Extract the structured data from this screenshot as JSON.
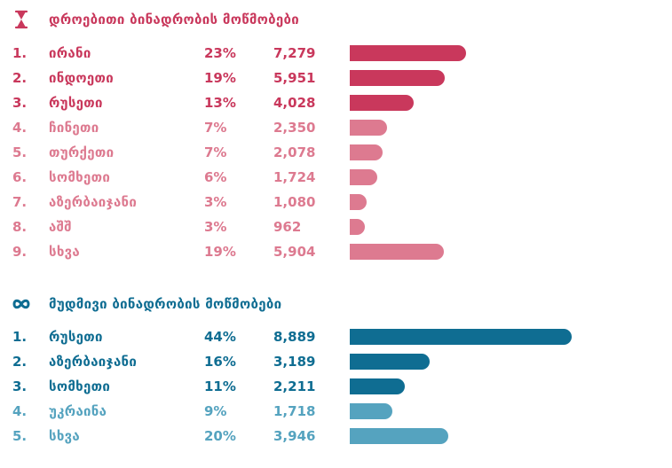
{
  "colors": {
    "temp_dark": "#c9385c",
    "temp_light": "#dd7a90",
    "perm_dark": "#0f6d92",
    "perm_light": "#55a3bf"
  },
  "temporary": {
    "icon": "hourglass-icon",
    "title": "დროებითი ბინადრობის მოწმობები"
  },
  "permanent": {
    "icon": "infinity-icon",
    "title": "მუდმივი ბინადრობის მოწმობები"
  },
  "chart_data": [
    {
      "type": "bar",
      "title": "დროებითი ბინადრობის მოწმობები",
      "orientation": "horizontal",
      "rows": [
        {
          "rank": "1.",
          "name": "ირანი",
          "percent": "23%",
          "count": "7,279",
          "value": 7279,
          "shade": "dark"
        },
        {
          "rank": "2.",
          "name": "ინდოეთი",
          "percent": "19%",
          "count": "5,951",
          "value": 5951,
          "shade": "dark"
        },
        {
          "rank": "3.",
          "name": "რუსეთი",
          "percent": "13%",
          "count": "4,028",
          "value": 4028,
          "shade": "dark"
        },
        {
          "rank": "4.",
          "name": "ჩინეთი",
          "percent": "7%",
          "count": "2,350",
          "value": 2350,
          "shade": "light"
        },
        {
          "rank": "5.",
          "name": "თურქეთი",
          "percent": "7%",
          "count": "2,078",
          "value": 2078,
          "shade": "light"
        },
        {
          "rank": "6.",
          "name": "სომხეთი",
          "percent": "6%",
          "count": "1,724",
          "value": 1724,
          "shade": "light"
        },
        {
          "rank": "7.",
          "name": "აზერბაიჯანი",
          "percent": "3%",
          "count": "1,080",
          "value": 1080,
          "shade": "light"
        },
        {
          "rank": "8.",
          "name": "აშშ",
          "percent": "3%",
          "count": "962",
          "value": 962,
          "shade": "light"
        },
        {
          "rank": "9.",
          "name": "სხვა",
          "percent": "19%",
          "count": "5,904",
          "value": 5904,
          "shade": "light"
        }
      ]
    },
    {
      "type": "bar",
      "title": "მუდმივი ბინადრობის მოწმობები",
      "orientation": "horizontal",
      "rows": [
        {
          "rank": "1.",
          "name": "რუსეთი",
          "percent": "44%",
          "count": "8,889",
          "value": 8889,
          "shade": "dark"
        },
        {
          "rank": "2.",
          "name": "აზერბაიჯანი",
          "percent": "16%",
          "count": "3,189",
          "value": 3189,
          "shade": "dark"
        },
        {
          "rank": "3.",
          "name": "სომხეთი",
          "percent": "11%",
          "count": "2,211",
          "value": 2211,
          "shade": "dark"
        },
        {
          "rank": "4.",
          "name": "უკრაინა",
          "percent": "9%",
          "count": "1,718",
          "value": 1718,
          "shade": "light"
        },
        {
          "rank": "5.",
          "name": "სხვა",
          "percent": "20%",
          "count": "3,946",
          "value": 3946,
          "shade": "light"
        }
      ]
    }
  ]
}
